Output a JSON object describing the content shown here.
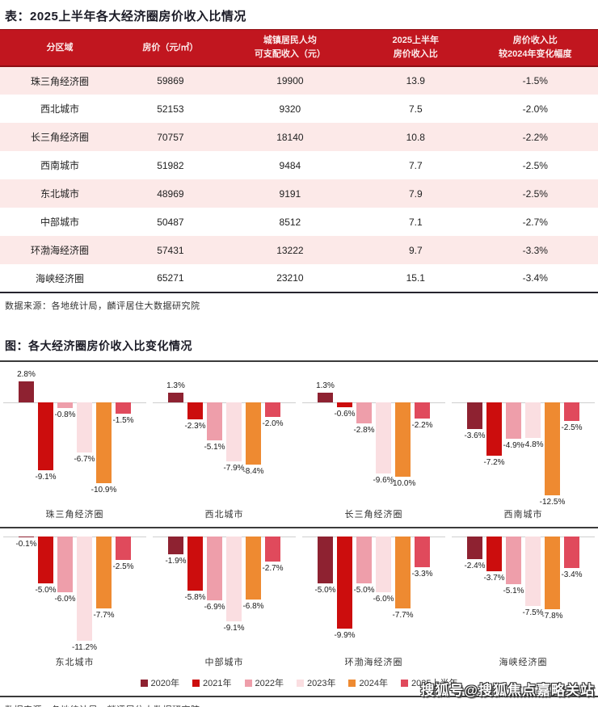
{
  "colors": {
    "header_red": "#C1161F",
    "header_red_dark": "#8F0E13",
    "row_pink": "#FCE9E8",
    "series_colors": [
      "#8E2231",
      "#CC0D0D",
      "#EE9EAA",
      "#FADEE1",
      "#EE8A31",
      "#E04A5C"
    ]
  },
  "table_section": {
    "title": "表：2025上半年各大经济圈房价收入比情况",
    "headers": [
      [
        "分区域"
      ],
      [
        "房价（元/㎡）"
      ],
      [
        "城镇居民人均",
        "可支配收入（元）"
      ],
      [
        "2025上半年",
        "房价收入比"
      ],
      [
        "房价收入比",
        "较2024年变化幅度"
      ]
    ],
    "rows": [
      [
        "珠三角经济圈",
        "59869",
        "19900",
        "13.9",
        "-1.5%"
      ],
      [
        "西北城市",
        "52153",
        "9320",
        "7.5",
        "-2.0%"
      ],
      [
        "长三角经济圈",
        "70757",
        "18140",
        "10.8",
        "-2.2%"
      ],
      [
        "西南城市",
        "51982",
        "9484",
        "7.7",
        "-2.5%"
      ],
      [
        "东北城市",
        "48969",
        "9191",
        "7.9",
        "-2.5%"
      ],
      [
        "中部城市",
        "50487",
        "8512",
        "7.1",
        "-2.7%"
      ],
      [
        "环渤海经济圈",
        "57431",
        "13222",
        "9.7",
        "-3.3%"
      ],
      [
        "海峡经济圈",
        "65271",
        "23210",
        "15.1",
        "-3.4%"
      ]
    ],
    "source": "数据来源：各地统计局，麟评居住大数据研究院"
  },
  "figure_section": {
    "title": "图：各大经济圈房价收入比变化情况",
    "legend": [
      "2020年",
      "2021年",
      "2022年",
      "2023年",
      "2024年",
      "2025上半年"
    ],
    "source": "数据来源：各地统计局，麟评居住大数据研究院"
  },
  "chart_data": {
    "type": "bar",
    "unit": "%",
    "categories": [
      "2020年",
      "2021年",
      "2022年",
      "2023年",
      "2024年",
      "2025上半年"
    ],
    "legend_position": "bottom",
    "grid": false,
    "charts": [
      {
        "title": "珠三角经济圈",
        "values": [
          2.8,
          -9.1,
          -0.8,
          -6.7,
          -10.9,
          -1.5
        ]
      },
      {
        "title": "西北城市",
        "values": [
          1.3,
          -2.3,
          -5.1,
          -7.9,
          -8.4,
          -2.0
        ]
      },
      {
        "title": "长三角经济圈",
        "values": [
          1.3,
          -0.6,
          -2.8,
          -9.6,
          -10.0,
          -2.2
        ]
      },
      {
        "title": "西南城市",
        "values": [
          -3.6,
          -7.2,
          -4.9,
          -4.8,
          -12.5,
          -2.5
        ]
      },
      {
        "title": "东北城市",
        "values": [
          -0.1,
          -5.0,
          -6.0,
          -11.2,
          -7.7,
          -2.5
        ]
      },
      {
        "title": "中部城市",
        "values": [
          -1.9,
          -5.8,
          -6.9,
          -9.1,
          -6.8,
          -2.7
        ]
      },
      {
        "title": "环渤海经济圈",
        "values": [
          -5.0,
          -9.9,
          -5.0,
          -6.0,
          -7.7,
          -3.3
        ]
      },
      {
        "title": "海峡经济圈",
        "values": [
          -2.4,
          -3.7,
          -5.1,
          -7.5,
          -7.8,
          -3.4
        ]
      }
    ]
  },
  "watermark": "搜狐号@搜狐焦点嘉略关站"
}
